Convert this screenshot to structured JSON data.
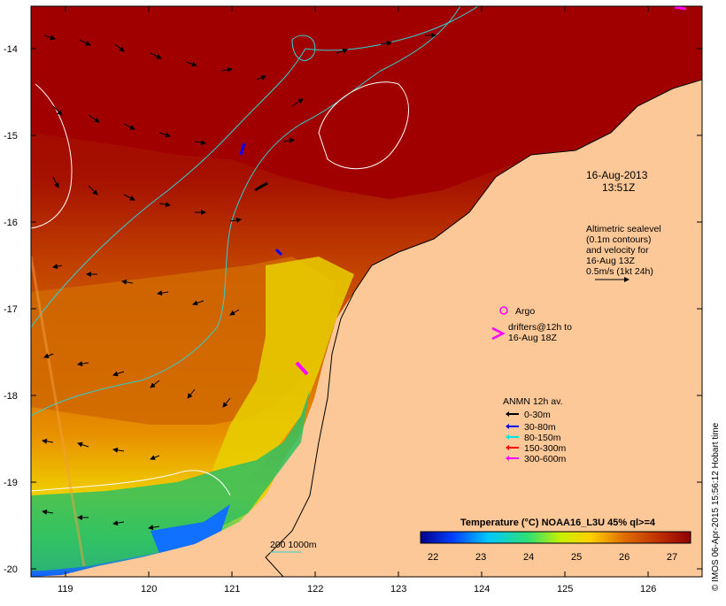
{
  "map": {
    "lat_ticks": [
      "-14",
      "-15",
      "-16",
      "-17",
      "-18",
      "-19",
      "-20"
    ],
    "lon_ticks": [
      "119",
      "120",
      "121",
      "122",
      "123",
      "124",
      "125",
      "126"
    ],
    "date_line1": "16-Aug-2013",
    "date_line2": "13:51Z",
    "altimetry": {
      "line1": "Altimetric sealevel",
      "line2": "(0.1m contours)",
      "line3": "and velocity for",
      "line4": "16-Aug 13Z",
      "line5": "0.5m/s (1kt 24h)"
    },
    "argo_label": "Argo",
    "drifters": {
      "line1": "drifters@12h to",
      "line2": "16-Aug 18Z"
    },
    "anmn": {
      "title": "ANMN 12h av.",
      "items": [
        {
          "label": "0-30m",
          "color": "#000000"
        },
        {
          "label": "30-80m",
          "color": "#0000ff"
        },
        {
          "label": "80-150m",
          "color": "#00e5e5"
        },
        {
          "label": "150-300m",
          "color": "#ff0000"
        },
        {
          "label": "300-600m",
          "color": "#ff00ff"
        }
      ]
    },
    "contour_legend": "200  1000m",
    "colorbar": {
      "title": "Temperature (°C) NOAA16_L3U 45% ql>=4",
      "ticks": [
        "22",
        "23",
        "24",
        "25",
        "26",
        "27"
      ],
      "range": [
        21.5,
        27.5
      ],
      "colors": [
        "#00008b",
        "#0040ff",
        "#00c8ff",
        "#30e070",
        "#c8f000",
        "#ffd000",
        "#e07000",
        "#c03000",
        "#900000"
      ]
    },
    "credit": "© IMOS 06-Apr-2015 15:56:12 Hobart time",
    "land_color": "#fcc898",
    "ocean_warm": "#a00000"
  }
}
